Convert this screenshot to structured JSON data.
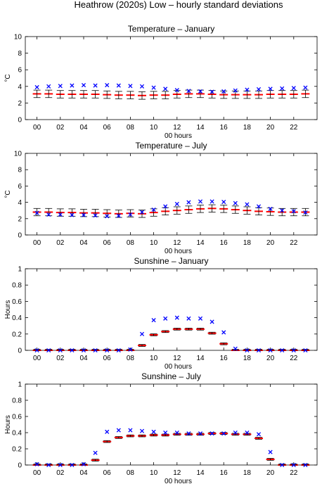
{
  "figure": {
    "title": "Heathrow (2020s) Low – hourly standard deviations"
  },
  "colors": {
    "simulated": "#ff0000",
    "observed": "#0000ff",
    "errorbar": "#000000"
  },
  "chart_data": [
    {
      "type": "scatter",
      "title": "Temperature – January",
      "xlabel": "00 hours",
      "ylabel": "°C",
      "xlim": [
        -1,
        24
      ],
      "ylim": [
        0,
        10
      ],
      "xticks": [
        "00",
        "02",
        "04",
        "06",
        "08",
        "10",
        "12",
        "14",
        "16",
        "18",
        "20",
        "22"
      ],
      "yticks": [
        "0",
        "2",
        "4",
        "6",
        "8",
        "10"
      ],
      "grid": false,
      "x": [
        0,
        1,
        2,
        3,
        4,
        5,
        6,
        7,
        8,
        9,
        10,
        11,
        12,
        13,
        14,
        15,
        16,
        17,
        18,
        19,
        20,
        21,
        22,
        23
      ],
      "series": [
        {
          "role": "simulated",
          "marker": "dash",
          "values": [
            3.1,
            3.1,
            3.05,
            3.05,
            3.05,
            3.05,
            3.0,
            2.95,
            2.95,
            2.9,
            2.95,
            2.95,
            3.05,
            3.1,
            3.1,
            3.05,
            3.0,
            3.0,
            3.0,
            3.0,
            3.05,
            3.05,
            3.05,
            3.1
          ]
        },
        {
          "role": "errorbar",
          "marker": "errorbar",
          "half_width": 0.45,
          "values": [
            3.1,
            3.1,
            3.05,
            3.05,
            3.05,
            3.05,
            3.0,
            2.95,
            2.95,
            2.9,
            2.95,
            2.95,
            3.05,
            3.1,
            3.1,
            3.05,
            3.0,
            3.0,
            3.0,
            3.0,
            3.05,
            3.05,
            3.05,
            3.1
          ]
        },
        {
          "role": "observed",
          "marker": "x",
          "values": [
            3.9,
            4.0,
            4.05,
            4.1,
            4.15,
            4.1,
            4.15,
            4.1,
            4.05,
            4.0,
            3.85,
            3.7,
            3.55,
            3.45,
            3.4,
            3.35,
            3.4,
            3.5,
            3.6,
            3.65,
            3.7,
            3.75,
            3.8,
            3.85
          ]
        }
      ]
    },
    {
      "type": "scatter",
      "title": "Temperature – July",
      "xlabel": "00 hours",
      "ylabel": "°C",
      "xlim": [
        -1,
        24
      ],
      "ylim": [
        0,
        10
      ],
      "xticks": [
        "00",
        "02",
        "04",
        "06",
        "08",
        "10",
        "12",
        "14",
        "16",
        "18",
        "20",
        "22"
      ],
      "yticks": [
        "0",
        "2",
        "4",
        "6",
        "8",
        "10"
      ],
      "grid": false,
      "x": [
        0,
        1,
        2,
        3,
        4,
        5,
        6,
        7,
        8,
        9,
        10,
        11,
        12,
        13,
        14,
        15,
        16,
        17,
        18,
        19,
        20,
        21,
        22,
        23
      ],
      "series": [
        {
          "role": "simulated",
          "marker": "dash",
          "values": [
            2.8,
            2.8,
            2.75,
            2.75,
            2.7,
            2.7,
            2.65,
            2.6,
            2.65,
            2.6,
            2.75,
            2.9,
            3.0,
            3.1,
            3.2,
            3.25,
            3.2,
            3.1,
            3.0,
            2.9,
            2.85,
            2.8,
            2.8,
            2.8
          ]
        },
        {
          "role": "errorbar",
          "marker": "errorbar",
          "half_width": 0.45,
          "values": [
            2.8,
            2.8,
            2.75,
            2.75,
            2.7,
            2.7,
            2.65,
            2.6,
            2.65,
            2.6,
            2.75,
            2.9,
            3.0,
            3.1,
            3.2,
            3.25,
            3.2,
            3.1,
            3.0,
            2.9,
            2.85,
            2.8,
            2.8,
            2.8
          ]
        },
        {
          "role": "observed",
          "marker": "x",
          "values": [
            2.7,
            2.5,
            2.5,
            2.45,
            2.45,
            2.4,
            2.3,
            2.35,
            2.5,
            2.8,
            3.1,
            3.5,
            3.8,
            4.0,
            4.1,
            4.1,
            4.05,
            3.9,
            3.75,
            3.5,
            3.2,
            3.0,
            2.9,
            2.75
          ]
        }
      ]
    },
    {
      "type": "scatter",
      "title": "Sunshine – January",
      "xlabel": "00 hours",
      "ylabel": "Hours",
      "xlim": [
        -1,
        24
      ],
      "ylim": [
        0,
        1
      ],
      "xticks": [
        "00",
        "02",
        "04",
        "06",
        "08",
        "10",
        "12",
        "14",
        "16",
        "18",
        "20",
        "22"
      ],
      "yticks": [
        "0",
        "0.2",
        "0.4",
        "0.6",
        "0.8",
        "1"
      ],
      "grid": false,
      "x": [
        0,
        1,
        2,
        3,
        4,
        5,
        6,
        7,
        8,
        9,
        10,
        11,
        12,
        13,
        14,
        15,
        16,
        17,
        18,
        19,
        20,
        21,
        22,
        23
      ],
      "series": [
        {
          "role": "simulated",
          "marker": "dash",
          "values": [
            0,
            0,
            0,
            0,
            0,
            0,
            0,
            0,
            0,
            0.06,
            0.19,
            0.23,
            0.26,
            0.26,
            0.26,
            0.21,
            0.08,
            0,
            0,
            0,
            0,
            0,
            0,
            0
          ]
        },
        {
          "role": "errorbar",
          "marker": "errorbar",
          "half_width": 0.012,
          "values": [
            0,
            0,
            0,
            0,
            0,
            0,
            0,
            0,
            0,
            0.06,
            0.19,
            0.23,
            0.26,
            0.26,
            0.26,
            0.21,
            0.08,
            0,
            0,
            0,
            0,
            0,
            0,
            0
          ]
        },
        {
          "role": "observed",
          "marker": "x",
          "values": [
            0,
            0,
            0,
            0,
            0,
            0,
            0,
            0,
            0.01,
            0.2,
            0.37,
            0.39,
            0.4,
            0.39,
            0.39,
            0.35,
            0.22,
            0.02,
            0,
            0,
            0,
            0,
            0,
            0
          ]
        }
      ]
    },
    {
      "type": "scatter",
      "title": "Sunshine – July",
      "xlabel": "00 hours",
      "ylabel": "Hours",
      "xlim": [
        -1,
        24
      ],
      "ylim": [
        0,
        1
      ],
      "xticks": [
        "00",
        "02",
        "04",
        "06",
        "08",
        "10",
        "12",
        "14",
        "16",
        "18",
        "20",
        "22"
      ],
      "yticks": [
        "0",
        "0.2",
        "0.4",
        "0.6",
        "0.8",
        "1"
      ],
      "grid": false,
      "x": [
        0,
        1,
        2,
        3,
        4,
        5,
        6,
        7,
        8,
        9,
        10,
        11,
        12,
        13,
        14,
        15,
        16,
        17,
        18,
        19,
        20,
        21,
        22,
        23
      ],
      "series": [
        {
          "role": "simulated",
          "marker": "dash",
          "values": [
            0,
            0,
            0,
            0,
            0,
            0.06,
            0.29,
            0.34,
            0.36,
            0.36,
            0.37,
            0.37,
            0.38,
            0.38,
            0.38,
            0.39,
            0.39,
            0.38,
            0.38,
            0.33,
            0.07,
            0,
            0,
            0
          ]
        },
        {
          "role": "errorbar",
          "marker": "errorbar",
          "half_width": 0.012,
          "values": [
            0,
            0,
            0,
            0,
            0,
            0.06,
            0.29,
            0.34,
            0.36,
            0.36,
            0.37,
            0.37,
            0.38,
            0.38,
            0.38,
            0.39,
            0.39,
            0.38,
            0.38,
            0.33,
            0.07,
            0,
            0,
            0
          ]
        },
        {
          "role": "observed",
          "marker": "x",
          "values": [
            0.01,
            0,
            0,
            0,
            0.01,
            0.15,
            0.41,
            0.43,
            0.43,
            0.42,
            0.41,
            0.4,
            0.4,
            0.39,
            0.39,
            0.39,
            0.39,
            0.4,
            0.4,
            0.38,
            0.16,
            0,
            0,
            0
          ]
        }
      ]
    }
  ]
}
